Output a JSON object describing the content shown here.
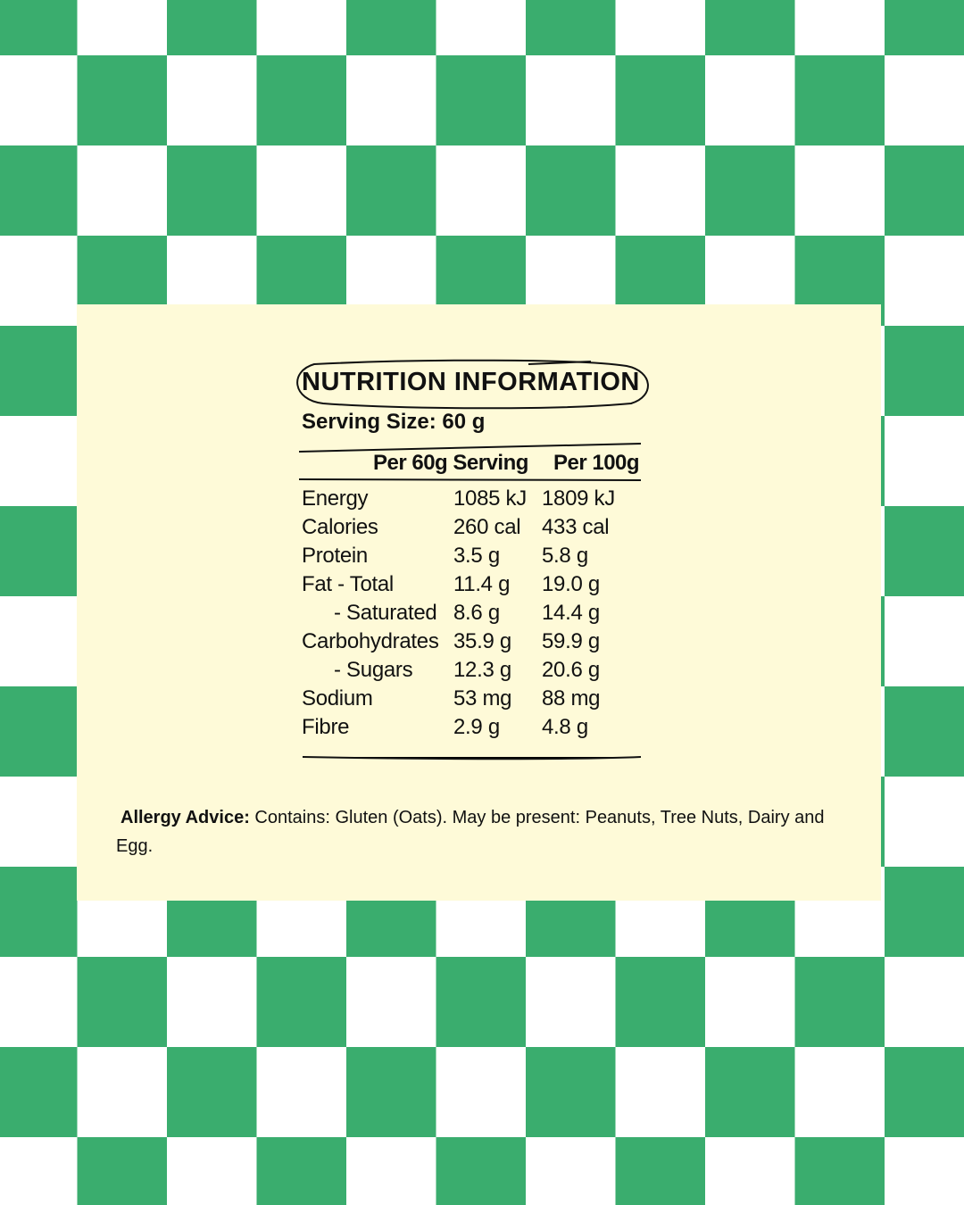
{
  "colors": {
    "green": "#3aad6e",
    "white": "#ffffff",
    "panel": "#fefad8"
  },
  "title": "NUTRITION INFORMATION",
  "serving_size": "Serving Size: 60 g",
  "headers": [
    "Per 60g Serving",
    "Per 100g"
  ],
  "rows": [
    {
      "label": "Energy",
      "per_serving": "1085 kJ",
      "per_100g": "1809 kJ"
    },
    {
      "label": "Calories",
      "per_serving": "260 cal",
      "per_100g": "433 cal"
    },
    {
      "label": "Protein",
      "per_serving": "3.5 g",
      "per_100g": "5.8 g"
    },
    {
      "label": "Fat - Total",
      "per_serving": "11.4 g",
      "per_100g": "19.0 g"
    },
    {
      "label": "- Saturated",
      "per_serving": "8.6 g",
      "per_100g": "14.4 g"
    },
    {
      "label": "Carbohydrates",
      "per_serving": "35.9 g",
      "per_100g": "59.9 g"
    },
    {
      "label": "- Sugars",
      "per_serving": "12.3 g",
      "per_100g": "20.6 g"
    },
    {
      "label": "Sodium",
      "per_serving": "53 mg",
      "per_100g": "88 mg"
    },
    {
      "label": "Fibre",
      "per_serving": "2.9 g",
      "per_100g": "4.8 g"
    }
  ],
  "allergy": {
    "label": "Allergy Advice:",
    "text": " Contains: Gluten (Oats). May be present: Peanuts, Tree Nuts, Dairy and Egg."
  }
}
